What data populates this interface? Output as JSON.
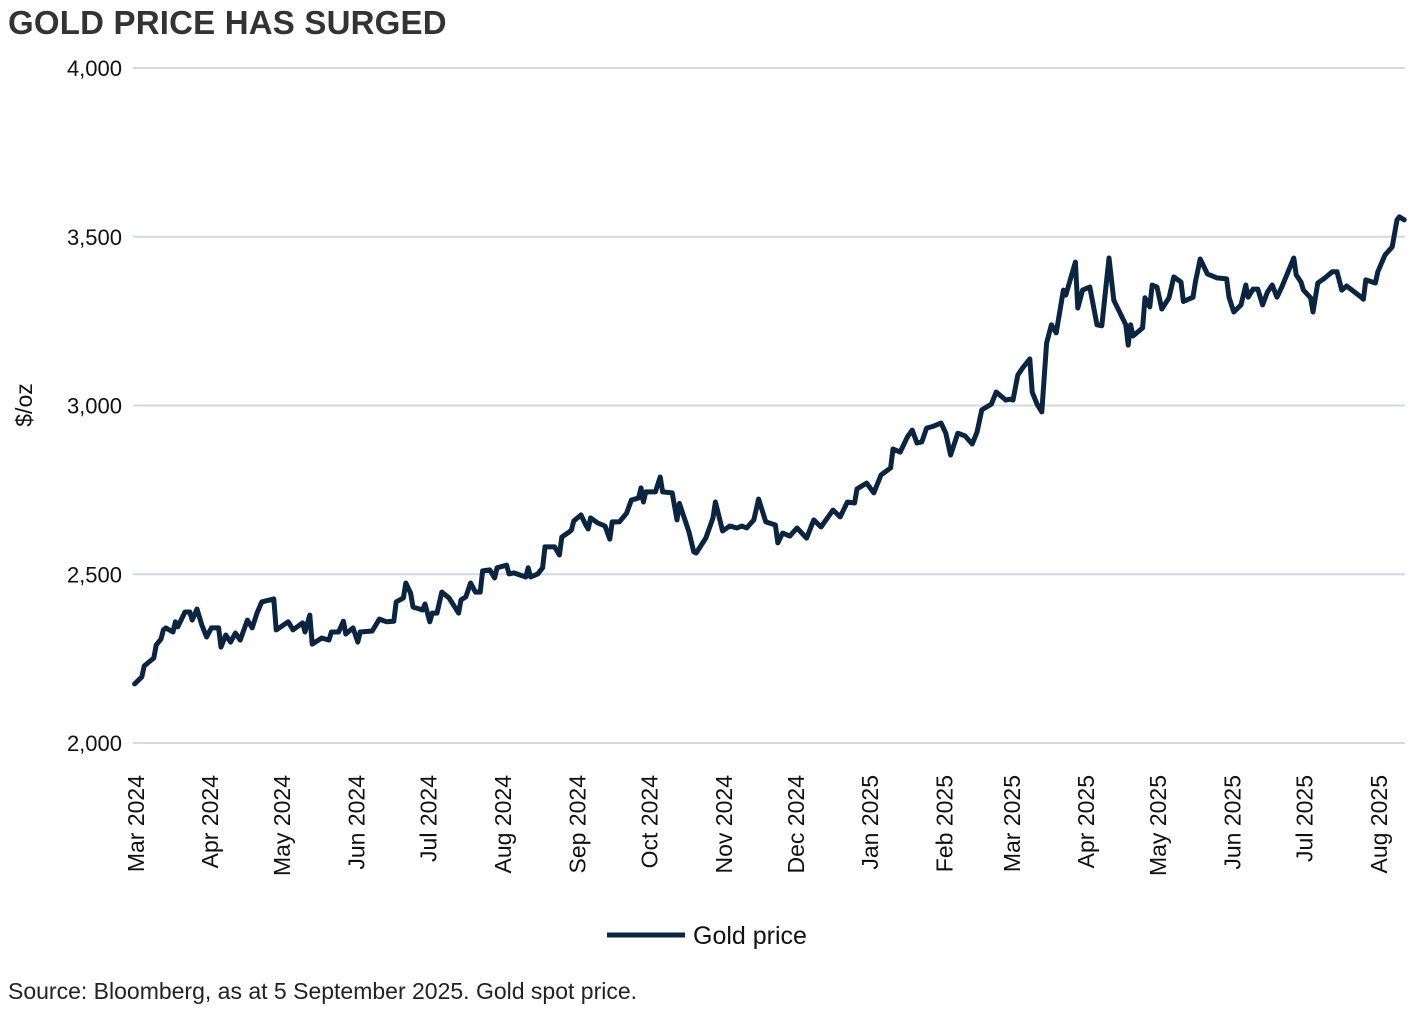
{
  "title": "GOLD PRICE HAS SURGED",
  "source": "Source: Bloomberg, as at 5 September 2025. Gold spot price.",
  "colors": {
    "line": "#0b2540",
    "grid": "#d5d8e3"
  },
  "chart_data": {
    "type": "line",
    "title": "GOLD PRICE HAS SURGED",
    "ylabel": "$/oz",
    "xlabel": "",
    "ylim": [
      2000,
      4000
    ],
    "yticks": [
      2000,
      2500,
      3000,
      3500,
      4000
    ],
    "ytick_labels": [
      "2,000",
      "2,500",
      "3,000",
      "3,500",
      "4,000"
    ],
    "xtick_labels": [
      "Mar 2024",
      "Apr 2024",
      "May 2024",
      "Jun 2024",
      "Jul 2024",
      "Aug 2024",
      "Sep 2024",
      "Oct 2024",
      "Nov 2024",
      "Dec 2024",
      "Jan 2025",
      "Feb 2025",
      "Mar 2025",
      "Apr 2025",
      "May 2025",
      "Jun 2025",
      "Jul 2025",
      "Aug 2025"
    ],
    "xtick_months": [
      "2024-03",
      "2024-04",
      "2024-05",
      "2024-06",
      "2024-07",
      "2024-08",
      "2024-09",
      "2024-10",
      "2024-11",
      "2024-12",
      "2025-01",
      "2025-02",
      "2025-03",
      "2025-04",
      "2025-05",
      "2025-06",
      "2025-07",
      "2025-08"
    ],
    "grid": "horizontal",
    "legend": "bottom-center",
    "series": [
      {
        "name": "Gold price",
        "x": [
          "2024-03-25",
          "2024-03-28",
          "2024-03-29",
          "2024-04-02",
          "2024-04-03",
          "2024-04-05",
          "2024-04-06",
          "2024-04-07",
          "2024-04-10",
          "2024-04-11",
          "2024-04-12",
          "2024-04-15",
          "2024-04-17",
          "2024-04-18",
          "2024-04-20",
          "2024-04-22",
          "2024-04-24",
          "2024-04-26",
          "2024-04-29",
          "2024-04-30",
          "2024-05-02",
          "2024-05-04",
          "2024-05-06",
          "2024-05-08",
          "2024-05-11",
          "2024-05-13",
          "2024-05-15",
          "2024-05-17",
          "2024-05-22",
          "2024-05-23",
          "2024-05-28",
          "2024-05-30",
          "2024-06-03",
          "2024-06-04",
          "2024-06-06",
          "2024-06-07",
          "2024-06-11",
          "2024-06-14",
          "2024-06-15",
          "2024-06-18",
          "2024-06-20",
          "2024-06-21",
          "2024-06-24",
          "2024-06-26",
          "2024-06-27",
          "2024-07-02",
          "2024-07-05",
          "2024-07-08",
          "2024-07-11",
          "2024-07-12",
          "2024-07-15",
          "2024-07-16",
          "2024-07-18",
          "2024-07-19",
          "2024-07-23",
          "2024-07-24",
          "2024-07-26",
          "2024-07-27",
          "2024-07-29",
          "2024-07-31",
          "2024-08-03",
          "2024-08-07",
          "2024-08-08",
          "2024-08-10",
          "2024-08-12",
          "2024-08-14",
          "2024-08-16",
          "2024-08-17",
          "2024-08-20",
          "2024-08-22",
          "2024-08-23",
          "2024-08-27",
          "2024-08-28",
          "2024-08-30",
          "2024-09-04",
          "2024-09-05",
          "2024-09-06",
          "2024-09-09",
          "2024-09-11",
          "2024-09-12",
          "2024-09-16",
          "2024-09-18",
          "2024-09-19",
          "2024-09-22",
          "2024-09-23",
          "2024-09-24",
          "2024-09-27",
          "2024-09-29",
          "2024-09-30",
          "2024-10-01",
          "2024-10-04",
          "2024-10-07",
          "2024-10-09",
          "2024-10-10",
          "2024-10-13",
          "2024-10-16",
          "2024-10-18",
          "2024-10-21",
          "2024-10-22",
          "2024-10-23",
          "2024-10-24",
          "2024-10-28",
          "2024-10-30",
          "2024-10-31",
          "2024-11-04",
          "2024-11-06",
          "2024-11-07",
          "2024-11-11",
          "2024-11-13",
          "2024-11-14",
          "2024-11-18",
          "2024-11-21",
          "2024-11-22",
          "2024-11-25",
          "2024-11-28",
          "2024-12-01",
          "2024-12-03",
          "2024-12-05",
          "2024-12-08",
          "2024-12-10",
          "2024-12-13",
          "2024-12-17",
          "2024-12-18",
          "2024-12-20",
          "2024-12-23",
          "2024-12-26",
          "2024-12-30",
          "2025-01-02",
          "2025-01-05",
          "2025-01-10",
          "2025-01-13",
          "2025-01-16",
          "2025-01-19",
          "2025-01-20",
          "2025-01-24",
          "2025-01-27",
          "2025-01-30",
          "2025-02-03",
          "2025-02-04",
          "2025-02-07",
          "2025-02-10",
          "2025-02-12",
          "2025-02-14",
          "2025-02-16",
          "2025-02-18",
          "2025-02-21",
          "2025-02-24",
          "2025-02-26",
          "2025-02-28",
          "2025-03-03",
          "2025-03-06",
          "2025-03-09",
          "2025-03-11",
          "2025-03-13",
          "2025-03-17",
          "2025-03-19",
          "2025-03-23",
          "2025-03-25",
          "2025-03-26",
          "2025-03-28",
          "2025-03-30",
          "2025-04-02",
          "2025-04-03",
          "2025-04-05",
          "2025-04-07",
          "2025-04-09",
          "2025-04-11",
          "2025-04-13",
          "2025-04-16",
          "2025-04-17",
          "2025-04-21",
          "2025-04-22",
          "2025-04-24",
          "2025-04-27",
          "2025-04-30",
          "2025-05-02",
          "2025-05-05",
          "2025-05-07",
          "2025-05-12",
          "2025-05-13",
          "2025-05-14",
          "2025-05-15",
          "2025-05-19",
          "2025-05-20",
          "2025-05-22",
          "2025-05-23",
          "2025-05-25",
          "2025-05-27",
          "2025-05-30",
          "2025-06-01",
          "2025-06-04",
          "2025-06-05",
          "2025-06-09",
          "2025-06-10",
          "2025-06-12",
          "2025-06-15",
          "2025-06-19",
          "2025-06-23",
          "2025-06-24",
          "2025-06-26",
          "2025-06-29",
          "2025-07-01",
          "2025-07-02",
          "2025-07-04",
          "2025-07-06",
          "2025-07-08",
          "2025-07-10",
          "2025-07-12",
          "2025-07-14",
          "2025-07-16",
          "2025-07-21",
          "2025-07-22",
          "2025-07-24",
          "2025-07-25",
          "2025-07-28",
          "2025-07-29",
          "2025-07-31",
          "2025-08-03",
          "2025-08-06",
          "2025-08-08",
          "2025-08-10",
          "2025-08-12",
          "2025-08-17",
          "2025-08-19",
          "2025-08-20",
          "2025-08-24",
          "2025-08-25",
          "2025-08-28",
          "2025-08-31",
          "2025-09-02",
          "2025-09-03",
          "2025-09-05"
        ],
        "values": [
          2175,
          2196,
          2228,
          2252,
          2290,
          2308,
          2335,
          2341,
          2329,
          2359,
          2344,
          2388,
          2388,
          2364,
          2397,
          2350,
          2314,
          2341,
          2341,
          2284,
          2320,
          2299,
          2326,
          2305,
          2364,
          2341,
          2385,
          2418,
          2427,
          2335,
          2359,
          2335,
          2356,
          2329,
          2379,
          2293,
          2311,
          2305,
          2329,
          2329,
          2361,
          2323,
          2341,
          2299,
          2329,
          2332,
          2367,
          2359,
          2361,
          2418,
          2430,
          2474,
          2444,
          2403,
          2394,
          2412,
          2359,
          2385,
          2385,
          2447,
          2430,
          2385,
          2424,
          2433,
          2474,
          2447,
          2447,
          2510,
          2513,
          2489,
          2519,
          2527,
          2501,
          2504,
          2492,
          2519,
          2492,
          2501,
          2519,
          2581,
          2581,
          2557,
          2610,
          2625,
          2631,
          2658,
          2676,
          2646,
          2634,
          2667,
          2652,
          2643,
          2604,
          2655,
          2655,
          2681,
          2720,
          2726,
          2756,
          2714,
          2744,
          2744,
          2788,
          2744,
          2741,
          2661,
          2710,
          2625,
          2566,
          2563,
          2607,
          2667,
          2714,
          2628,
          2643,
          2637,
          2643,
          2637,
          2661,
          2723,
          2655,
          2646,
          2593,
          2622,
          2613,
          2637,
          2607,
          2661,
          2640,
          2690,
          2670,
          2714,
          2711,
          2753,
          2770,
          2741,
          2794,
          2815,
          2871,
          2862,
          2907,
          2927,
          2889,
          2892,
          2933,
          2939,
          2948,
          2918,
          2853,
          2918,
          2910,
          2886,
          2921,
          2987,
          3004,
          3040,
          3016,
          3019,
          3016,
          3090,
          3111,
          3138,
          3040,
          3004,
          2981,
          3185,
          3239,
          3215,
          3342,
          3327,
          3425,
          3289,
          3342,
          3351,
          3239,
          3236,
          3437,
          3312,
          3239,
          3179,
          3239,
          3206,
          3230,
          3319,
          3292,
          3357,
          3351,
          3286,
          3319,
          3381,
          3366,
          3308,
          3321,
          3366,
          3434,
          3390,
          3378,
          3375,
          3321,
          3277,
          3298,
          3357,
          3321,
          3345,
          3345,
          3298,
          3336,
          3357,
          3321,
          3351,
          3437,
          3387,
          3366,
          3342,
          3319,
          3277,
          3363,
          3378,
          3396,
          3396,
          3342,
          3354,
          3327,
          3315,
          3372,
          3363,
          3396,
          3446,
          3470,
          3550,
          3559,
          3550
        ]
      }
    ]
  }
}
